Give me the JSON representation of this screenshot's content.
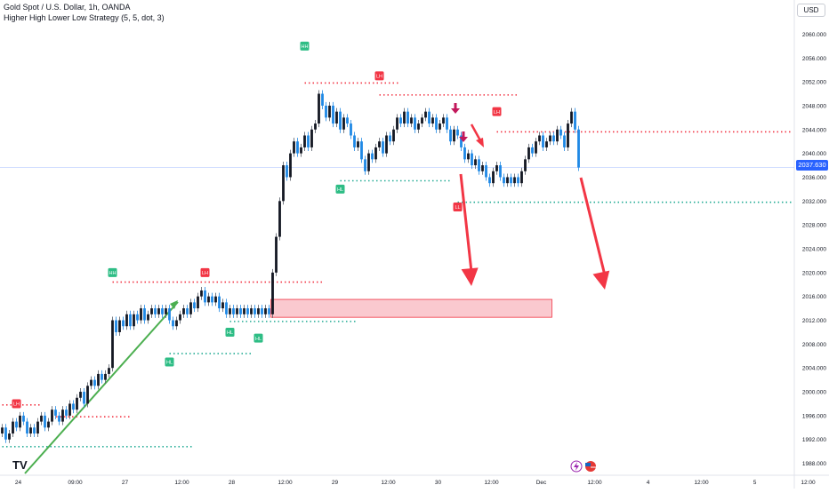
{
  "header": {
    "symbol_line": "Gold Spot / U.S. Dollar, 1h, OANDA",
    "indicator_line": "Higher High Lower Low Strategy (5, 5, dot, 3)",
    "currency": "USD"
  },
  "branding": {
    "logo": "TV"
  },
  "colors": {
    "up": "#26a69a",
    "down": "#1e88e5",
    "bull_label": "#2ebd85",
    "bear_label": "#f23645",
    "hh_line": "#f23645",
    "ll_line": "#22ab94",
    "arrow": "#f23645",
    "zone": "#f8b7bf",
    "trend": "#4caf50"
  },
  "chart_data": {
    "type": "candlestick",
    "title": "Gold Spot / U.S. Dollar, 1h, OANDA",
    "ylim": [
      1986,
      2062
    ],
    "y_ticks": [
      1988,
      1992,
      1996,
      2000,
      2004,
      2008,
      2012,
      2016,
      2020,
      2024,
      2028,
      2032,
      2036,
      2040,
      2044,
      2048,
      2052,
      2056,
      2060
    ],
    "y_tick_labels": [
      "1988.000",
      "1992.000",
      "1996.000",
      "2000.000",
      "2004.000",
      "2008.000",
      "2012.000",
      "2016.000",
      "2020.000",
      "2024.000",
      "2028.000",
      "2032.000",
      "2036.000",
      "2040.000",
      "2044.000",
      "2048.000",
      "2052.000",
      "2056.000",
      "2060.000"
    ],
    "x_labels": [
      "24",
      "09:00",
      "27",
      "12:00",
      "28",
      "12:00",
      "29",
      "12:00",
      "30",
      "12:00",
      "Dec",
      "12:00",
      "4",
      "12:00",
      "5",
      "12:00"
    ],
    "x_label_bars": [
      0,
      16,
      30,
      46,
      60,
      75,
      89,
      104,
      118,
      133,
      147,
      162,
      177,
      192,
      207,
      222
    ],
    "last_price": 2037.63,
    "last_price_label": "2037.630",
    "grid": false,
    "candles": [
      [
        1993,
        1994
      ],
      [
        1994,
        1992
      ],
      [
        1992,
        1993
      ],
      [
        1993,
        1995
      ],
      [
        1995,
        1994
      ],
      [
        1994,
        1996
      ],
      [
        1996,
        1995
      ],
      [
        1995,
        1993
      ],
      [
        1993,
        1994
      ],
      [
        1994,
        1993
      ],
      [
        1993,
        1995
      ],
      [
        1995,
        1996
      ],
      [
        1996,
        1994
      ],
      [
        1994,
        1995
      ],
      [
        1995,
        1997
      ],
      [
        1997,
        1996
      ],
      [
        1996,
        1995
      ],
      [
        1995,
        1997
      ],
      [
        1997,
        1996
      ],
      [
        1996,
        1998
      ],
      [
        1998,
        1997
      ],
      [
        1997,
        1999
      ],
      [
        1999,
        2000
      ],
      [
        2000,
        1998
      ],
      [
        1998,
        2001
      ],
      [
        2001,
        2002
      ],
      [
        2002,
        2001
      ],
      [
        2001,
        2003
      ],
      [
        2003,
        2002
      ],
      [
        2002,
        2003
      ],
      [
        2003,
        2004
      ],
      [
        2004,
        2012
      ],
      [
        2012,
        2010
      ],
      [
        2010,
        2012
      ],
      [
        2012,
        2011
      ],
      [
        2011,
        2013
      ],
      [
        2013,
        2011
      ],
      [
        2011,
        2013
      ],
      [
        2013,
        2012
      ],
      [
        2012,
        2014
      ],
      [
        2014,
        2012
      ],
      [
        2012,
        2013
      ],
      [
        2013,
        2014
      ],
      [
        2014,
        2013
      ],
      [
        2013,
        2014
      ],
      [
        2014,
        2013
      ],
      [
        2013,
        2014
      ],
      [
        2014,
        2012
      ],
      [
        2012,
        2011
      ],
      [
        2011,
        2012
      ],
      [
        2012,
        2013
      ],
      [
        2013,
        2014
      ],
      [
        2014,
        2013
      ],
      [
        2013,
        2015
      ],
      [
        2015,
        2014
      ],
      [
        2014,
        2016
      ],
      [
        2016,
        2017
      ],
      [
        2017,
        2015
      ],
      [
        2015,
        2016
      ],
      [
        2016,
        2015
      ],
      [
        2015,
        2016
      ],
      [
        2016,
        2014
      ],
      [
        2014,
        2015
      ],
      [
        2015,
        2013
      ],
      [
        2013,
        2014
      ],
      [
        2014,
        2013
      ],
      [
        2013,
        2014
      ],
      [
        2014,
        2013
      ],
      [
        2013,
        2014
      ],
      [
        2014,
        2013
      ],
      [
        2013,
        2014
      ],
      [
        2014,
        2013
      ],
      [
        2013,
        2014
      ],
      [
        2014,
        2013
      ],
      [
        2013,
        2014
      ],
      [
        2014,
        2013
      ],
      [
        2013,
        2020
      ],
      [
        2020,
        2026
      ],
      [
        2026,
        2032
      ],
      [
        2032,
        2038
      ],
      [
        2038,
        2036
      ],
      [
        2036,
        2040
      ],
      [
        2040,
        2042
      ],
      [
        2042,
        2040
      ],
      [
        2040,
        2041
      ],
      [
        2041,
        2043
      ],
      [
        2043,
        2041
      ],
      [
        2041,
        2044
      ],
      [
        2044,
        2045
      ],
      [
        2045,
        2050
      ],
      [
        2050,
        2048
      ],
      [
        2048,
        2046
      ],
      [
        2046,
        2048
      ],
      [
        2048,
        2045
      ],
      [
        2045,
        2047
      ],
      [
        2047,
        2044
      ],
      [
        2044,
        2046
      ],
      [
        2046,
        2045
      ],
      [
        2045,
        2043
      ],
      [
        2043,
        2041
      ],
      [
        2041,
        2042
      ],
      [
        2042,
        2039
      ],
      [
        2039,
        2037
      ],
      [
        2037,
        2040
      ],
      [
        2040,
        2039
      ],
      [
        2039,
        2041
      ],
      [
        2041,
        2042
      ],
      [
        2042,
        2040
      ],
      [
        2040,
        2043
      ],
      [
        2043,
        2042
      ],
      [
        2042,
        2044
      ],
      [
        2044,
        2046
      ],
      [
        2046,
        2045
      ],
      [
        2045,
        2047
      ],
      [
        2047,
        2045
      ],
      [
        2045,
        2046
      ],
      [
        2046,
        2044
      ],
      [
        2044,
        2045
      ],
      [
        2045,
        2046
      ],
      [
        2046,
        2047
      ],
      [
        2047,
        2045
      ],
      [
        2045,
        2046
      ],
      [
        2046,
        2044
      ],
      [
        2044,
        2045
      ],
      [
        2045,
        2046
      ],
      [
        2046,
        2044
      ],
      [
        2044,
        2042
      ],
      [
        2042,
        2044
      ],
      [
        2044,
        2043
      ],
      [
        2043,
        2041
      ],
      [
        2041,
        2039
      ],
      [
        2039,
        2040
      ],
      [
        2040,
        2038
      ],
      [
        2038,
        2039
      ],
      [
        2039,
        2037
      ],
      [
        2037,
        2038
      ],
      [
        2038,
        2036
      ],
      [
        2036,
        2035
      ],
      [
        2035,
        2037
      ],
      [
        2037,
        2038
      ],
      [
        2038,
        2036
      ],
      [
        2036,
        2035
      ],
      [
        2035,
        2036
      ],
      [
        2036,
        2035
      ],
      [
        2035,
        2036
      ],
      [
        2036,
        2035
      ],
      [
        2035,
        2037
      ],
      [
        2037,
        2039
      ],
      [
        2039,
        2041
      ],
      [
        2041,
        2040
      ],
      [
        2040,
        2042
      ],
      [
        2042,
        2043
      ],
      [
        2043,
        2041
      ],
      [
        2041,
        2042
      ],
      [
        2042,
        2043
      ],
      [
        2043,
        2042
      ],
      [
        2042,
        2044
      ],
      [
        2044,
        2043
      ],
      [
        2043,
        2041
      ],
      [
        2041,
        2045
      ],
      [
        2045,
        2047
      ],
      [
        2047,
        2044
      ],
      [
        2044,
        2037.63
      ]
    ],
    "swing_labels": [
      {
        "text": "LH",
        "bar": 4,
        "price": 1998,
        "kind": "bear"
      },
      {
        "text": "HH",
        "bar": 31,
        "price": 2020,
        "kind": "bull"
      },
      {
        "text": "HL",
        "bar": 47,
        "price": 2005,
        "kind": "bull"
      },
      {
        "text": "LH",
        "bar": 57,
        "price": 2020,
        "kind": "bear"
      },
      {
        "text": "HL",
        "bar": 64,
        "price": 2010,
        "kind": "bull"
      },
      {
        "text": "HL",
        "bar": 72,
        "price": 2009,
        "kind": "bull"
      },
      {
        "text": "HH",
        "bar": 85,
        "price": 2058,
        "kind": "bull"
      },
      {
        "text": "HL",
        "bar": 95,
        "price": 2034,
        "kind": "bull"
      },
      {
        "text": "LH",
        "bar": 106,
        "price": 2053,
        "kind": "bear"
      },
      {
        "text": "LL",
        "bar": 128,
        "price": 2031,
        "kind": "bear"
      },
      {
        "text": "LH",
        "bar": 139,
        "price": 2047,
        "kind": "bear"
      }
    ],
    "levels": [
      {
        "price": 2051.8,
        "from": 85,
        "to": 112,
        "kind": "bear"
      },
      {
        "price": 2049.8,
        "from": 106,
        "to": 145,
        "kind": "bear"
      },
      {
        "price": 2043.6,
        "from": 139,
        "to": 222,
        "kind": "bear"
      },
      {
        "price": 2035.4,
        "from": 95,
        "to": 126,
        "kind": "bull"
      },
      {
        "price": 2031.8,
        "from": 128,
        "to": 222,
        "kind": "bull"
      },
      {
        "price": 2018.4,
        "from": 31,
        "to": 90,
        "kind": "bear"
      },
      {
        "price": 2011.8,
        "from": 64,
        "to": 100,
        "kind": "bull"
      },
      {
        "price": 2006.4,
        "from": 47,
        "to": 70,
        "kind": "bull"
      },
      {
        "price": 1995.8,
        "from": 14,
        "to": 36,
        "kind": "bear"
      },
      {
        "price": 1997.8,
        "from": 0,
        "to": 11,
        "kind": "bear"
      },
      {
        "price": 1990.8,
        "from": 0,
        "to": 54,
        "kind": "bull"
      }
    ],
    "zone": {
      "from_bar": 73,
      "to_bar": 155,
      "top": 2015.5,
      "bottom": 2012.5
    }
  }
}
